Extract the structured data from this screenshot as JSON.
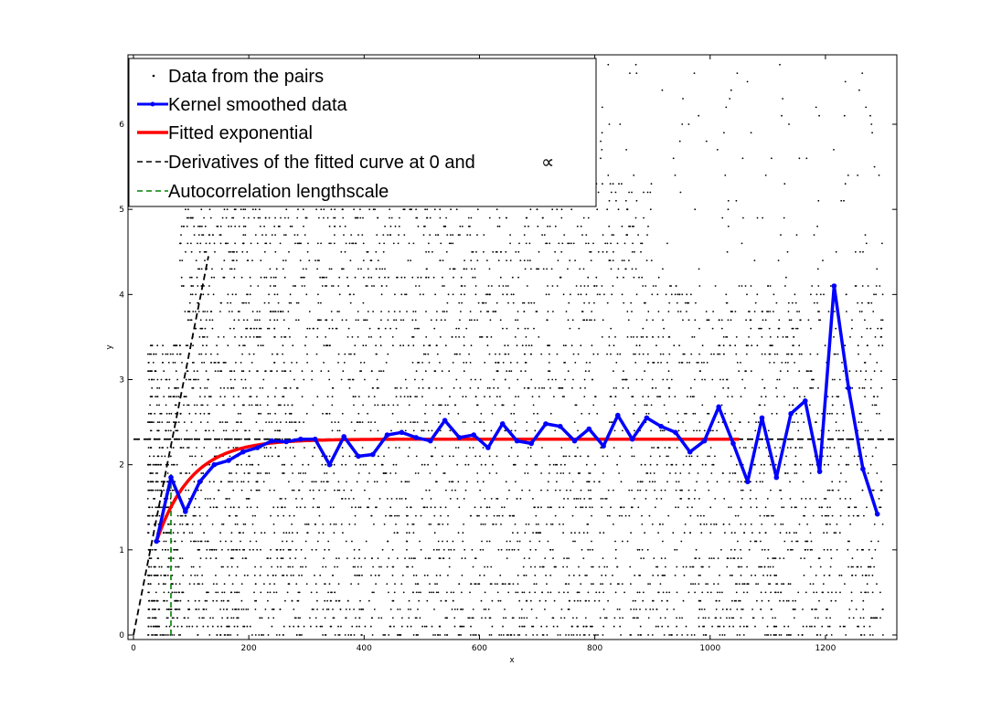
{
  "chart_data": {
    "type": "scatter",
    "title": "",
    "xlabel": "x",
    "ylabel": "y",
    "xlim": [
      0,
      1320
    ],
    "ylim": [
      0,
      6.9
    ],
    "xticks": [
      0,
      200,
      400,
      600,
      800,
      1000,
      1200
    ],
    "yticks": [
      0,
      1,
      2,
      3,
      4,
      5,
      6
    ],
    "grid": false,
    "legend_position": "top-left",
    "colors": {
      "data": "#000000",
      "kernel": "#0000ff",
      "fit": "#ff0000",
      "deriv": "#000000",
      "lengthscale": "#008000"
    },
    "legend": [
      {
        "label": "Data from the pairs",
        "style": "dot"
      },
      {
        "label": "Kernel smoothed data",
        "style": "blue-line-marker"
      },
      {
        "label": "Fitted exponential",
        "style": "red-line"
      },
      {
        "label": "Derivatives of the fitted curve at 0 and",
        "symbol": "∝",
        "style": "black-dash"
      },
      {
        "label": "Autocorrelation lengthscale",
        "style": "green-dash"
      }
    ],
    "series": [
      {
        "name": "Data from the pairs",
        "kind": "scatter",
        "note_x_range": [
          25,
          1300
        ],
        "y_level_step": 0.1,
        "y_max": 6.8
      },
      {
        "name": "Kernel smoothed data",
        "kind": "line",
        "x": [
          40,
          65,
          90,
          115,
          140,
          165,
          190,
          215,
          240,
          265,
          290,
          315,
          340,
          365,
          390,
          415,
          440,
          465,
          490,
          515,
          540,
          565,
          590,
          615,
          640,
          665,
          690,
          715,
          740,
          765,
          790,
          815,
          840,
          865,
          890,
          915,
          940,
          965,
          990,
          1015,
          1040,
          1065,
          1090,
          1115,
          1140,
          1165,
          1190,
          1215,
          1240,
          1265,
          1290
        ],
        "y": [
          1.1,
          1.85,
          1.45,
          1.8,
          2.0,
          2.05,
          2.15,
          2.2,
          2.28,
          2.27,
          2.3,
          2.3,
          2.0,
          2.33,
          2.1,
          2.12,
          2.35,
          2.38,
          2.32,
          2.28,
          2.52,
          2.32,
          2.35,
          2.2,
          2.48,
          2.28,
          2.25,
          2.48,
          2.45,
          2.28,
          2.42,
          2.22,
          2.58,
          2.3,
          2.55,
          2.45,
          2.38,
          2.15,
          2.28,
          2.68,
          2.25,
          1.8,
          2.55,
          1.85,
          2.6,
          2.75,
          1.92,
          4.1,
          2.9,
          1.95,
          1.42
        ]
      },
      {
        "name": "Fitted exponential",
        "kind": "line",
        "model": {
          "type": "exponential",
          "a": 2.3,
          "b": 1.0,
          "k": 0.0164
        },
        "x_range": [
          40,
          1050
        ]
      },
      {
        "name": "Derivatives of the fitted curve at 0 and",
        "kind": "line",
        "segments": [
          {
            "x": [
              0,
              130
            ],
            "y": [
              0,
              4.45
            ]
          },
          {
            "x": [
              0,
              1320
            ],
            "y": [
              2.3,
              2.3
            ]
          }
        ]
      },
      {
        "name": "Autocorrelation lengthscale",
        "kind": "line",
        "x": [
          65,
          65
        ],
        "y": [
          0,
          1.9
        ]
      }
    ]
  }
}
